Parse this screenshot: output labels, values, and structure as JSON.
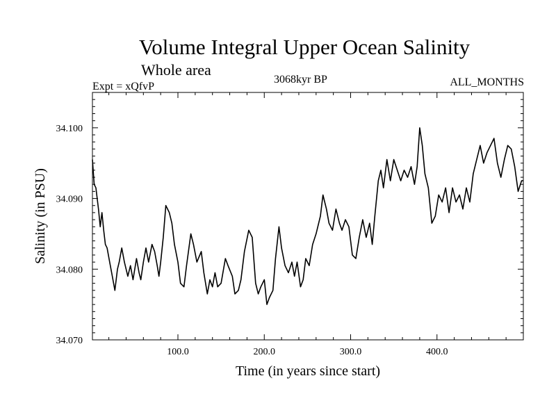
{
  "chart_data": {
    "type": "line",
    "title": "Volume Integral Upper Ocean Salinity",
    "subtitle": "Whole area",
    "top_left_label": "Expt = xQfvP",
    "top_center_label": "3068kyr BP",
    "top_right_label": "ALL_MONTHS",
    "xlabel": "Time (in years since start)",
    "ylabel": "Salinity (in PSU)",
    "xlim": [
      1,
      500
    ],
    "ylim": [
      34.07,
      34.105
    ],
    "x_ticks": [
      100,
      200,
      300,
      400
    ],
    "x_tick_labels": [
      "100.0",
      "200.0",
      "300.0",
      "400.0"
    ],
    "y_ticks": [
      34.07,
      34.08,
      34.09,
      34.1
    ],
    "y_tick_labels": [
      "34.070",
      "34.080",
      "34.090",
      "34.100"
    ],
    "grid": false,
    "series": [
      {
        "name": "Salinity",
        "x": [
          1,
          3,
          5,
          8,
          10,
          12,
          14,
          16,
          18,
          21,
          24,
          27,
          30,
          32,
          35,
          38,
          42,
          45,
          48,
          50,
          52,
          55,
          57,
          60,
          63,
          66,
          70,
          73,
          76,
          78,
          80,
          83,
          86,
          90,
          93,
          96,
          100,
          103,
          107,
          110,
          115,
          118,
          122,
          127,
          130,
          134,
          137,
          140,
          143,
          146,
          150,
          155,
          158,
          163,
          166,
          170,
          173,
          177,
          182,
          186,
          190,
          193,
          196,
          200,
          203,
          206,
          210,
          213,
          217,
          220,
          224,
          228,
          232,
          235,
          238,
          242,
          245,
          248,
          252,
          256,
          260,
          265,
          268,
          272,
          275,
          279,
          283,
          287,
          290,
          294,
          298,
          302,
          306,
          310,
          314,
          318,
          322,
          325,
          328,
          332,
          335,
          338,
          342,
          346,
          350,
          354,
          358,
          362,
          366,
          370,
          374,
          377,
          380,
          383,
          386,
          390,
          394,
          398,
          402,
          406,
          410,
          414,
          418,
          422,
          426,
          430,
          434,
          438,
          442,
          446,
          450,
          454,
          458,
          462,
          466,
          470,
          474,
          478,
          482,
          486,
          490,
          494,
          498,
          500
        ],
        "values": [
          34.0955,
          34.092,
          34.0915,
          34.0885,
          34.086,
          34.088,
          34.0855,
          34.0835,
          34.083,
          34.081,
          34.079,
          34.077,
          34.08,
          34.081,
          34.083,
          34.081,
          34.079,
          34.0805,
          34.0785,
          34.08,
          34.0815,
          34.0795,
          34.0785,
          34.081,
          34.083,
          34.081,
          34.0835,
          34.0825,
          34.0805,
          34.079,
          34.081,
          34.0845,
          34.089,
          34.088,
          34.0865,
          34.0835,
          34.081,
          34.078,
          34.0775,
          34.0805,
          34.085,
          34.0835,
          34.081,
          34.0825,
          34.0795,
          34.0765,
          34.0785,
          34.0775,
          34.0795,
          34.0775,
          34.078,
          34.0815,
          34.0805,
          34.079,
          34.0765,
          34.077,
          34.0785,
          34.0825,
          34.0855,
          34.0845,
          34.078,
          34.0765,
          34.0775,
          34.0785,
          34.075,
          34.076,
          34.077,
          34.0815,
          34.086,
          34.083,
          34.0805,
          34.0795,
          34.081,
          34.079,
          34.081,
          34.0775,
          34.0785,
          34.0815,
          34.0805,
          34.0835,
          34.085,
          34.0875,
          34.0905,
          34.0885,
          34.0865,
          34.0855,
          34.0885,
          34.0865,
          34.0855,
          34.087,
          34.086,
          34.082,
          34.0815,
          34.0845,
          34.087,
          34.0845,
          34.0865,
          34.0835,
          34.0875,
          34.0925,
          34.094,
          34.0915,
          34.0955,
          34.0925,
          34.0955,
          34.094,
          34.0925,
          34.094,
          34.093,
          34.0945,
          34.092,
          34.0945,
          34.1,
          34.0975,
          34.0935,
          34.0915,
          34.0865,
          34.0875,
          34.0905,
          34.0895,
          34.0915,
          34.088,
          34.0915,
          34.0895,
          34.0905,
          34.0885,
          34.0915,
          34.0895,
          34.0935,
          34.0955,
          34.0975,
          34.095,
          34.0965,
          34.0975,
          34.0985,
          34.095,
          34.093,
          34.0955,
          34.0975,
          34.097,
          34.0945,
          34.091,
          34.0925,
          34.0925
        ]
      }
    ]
  }
}
